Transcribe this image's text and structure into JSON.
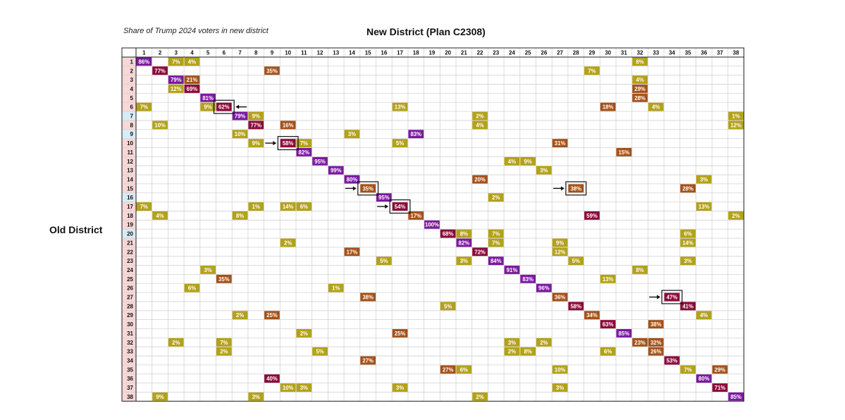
{
  "chart_data": {
    "type": "heatmap",
    "title": "New District (Plan C2308)",
    "subtitle": "Share of Trump 2024 voters in new district",
    "xlabel": "New District (Plan C2308)",
    "ylabel": "Old District",
    "columns": [
      "1",
      "2",
      "3",
      "4",
      "5",
      "6",
      "7",
      "8",
      "9",
      "10",
      "11",
      "12",
      "13",
      "14",
      "15",
      "16",
      "17",
      "18",
      "19",
      "20",
      "21",
      "22",
      "23",
      "24",
      "25",
      "26",
      "27",
      "28",
      "29",
      "30",
      "31",
      "32",
      "33",
      "34",
      "35",
      "36",
      "37",
      "38"
    ],
    "rows": [
      "1",
      "2",
      "3",
      "4",
      "5",
      "6",
      "7",
      "8",
      "9",
      "10",
      "11",
      "12",
      "13",
      "14",
      "15",
      "16",
      "17",
      "18",
      "19",
      "20",
      "21",
      "22",
      "23",
      "24",
      "25",
      "26",
      "27",
      "28",
      "29",
      "30",
      "31",
      "32",
      "33",
      "34",
      "35",
      "36",
      "37",
      "38"
    ],
    "row_header_colors": {
      "pink": "#f8d7d7",
      "blue": "#d6ecf8"
    },
    "blue_rows": [
      "7",
      "9",
      "16",
      "20"
    ],
    "color_scale": {
      "low": "#b3a218",
      "mid": "#a3521a",
      "high": "#8a0a3a",
      "top": "#7a1a9e"
    },
    "cells": [
      {
        "row": "1",
        "col": "1",
        "value": 86
      },
      {
        "row": "1",
        "col": "3",
        "value": 7
      },
      {
        "row": "1",
        "col": "4",
        "value": 4
      },
      {
        "row": "1",
        "col": "32",
        "value": 8
      },
      {
        "row": "2",
        "col": "2",
        "value": 77
      },
      {
        "row": "2",
        "col": "9",
        "value": 35
      },
      {
        "row": "2",
        "col": "29",
        "value": 7
      },
      {
        "row": "3",
        "col": "3",
        "value": 79
      },
      {
        "row": "3",
        "col": "4",
        "value": 21
      },
      {
        "row": "3",
        "col": "32",
        "value": 4
      },
      {
        "row": "4",
        "col": "3",
        "value": 12
      },
      {
        "row": "4",
        "col": "4",
        "value": 69
      },
      {
        "row": "4",
        "col": "32",
        "value": 29
      },
      {
        "row": "5",
        "col": "5",
        "value": 81
      },
      {
        "row": "5",
        "col": "32",
        "value": 28
      },
      {
        "row": "6",
        "col": "1",
        "value": 7
      },
      {
        "row": "6",
        "col": "5",
        "value": 9
      },
      {
        "row": "6",
        "col": "6",
        "value": 62
      },
      {
        "row": "6",
        "col": "17",
        "value": 13
      },
      {
        "row": "6",
        "col": "30",
        "value": 18
      },
      {
        "row": "6",
        "col": "33",
        "value": 4
      },
      {
        "row": "7",
        "col": "7",
        "value": 79
      },
      {
        "row": "7",
        "col": "8",
        "value": 9
      },
      {
        "row": "7",
        "col": "22",
        "value": 2
      },
      {
        "row": "7",
        "col": "38",
        "value": 1
      },
      {
        "row": "8",
        "col": "2",
        "value": 10
      },
      {
        "row": "8",
        "col": "8",
        "value": 77
      },
      {
        "row": "8",
        "col": "10",
        "value": 16
      },
      {
        "row": "8",
        "col": "22",
        "value": 4
      },
      {
        "row": "8",
        "col": "38",
        "value": 12
      },
      {
        "row": "9",
        "col": "7",
        "value": 10
      },
      {
        "row": "9",
        "col": "14",
        "value": 3
      },
      {
        "row": "9",
        "col": "18",
        "value": 83
      },
      {
        "row": "10",
        "col": "8",
        "value": 9
      },
      {
        "row": "10",
        "col": "10",
        "value": 58
      },
      {
        "row": "10",
        "col": "11",
        "value": 7
      },
      {
        "row": "10",
        "col": "17",
        "value": 5
      },
      {
        "row": "10",
        "col": "27",
        "value": 31
      },
      {
        "row": "11",
        "col": "11",
        "value": 82
      },
      {
        "row": "11",
        "col": "31",
        "value": 15
      },
      {
        "row": "12",
        "col": "12",
        "value": 95
      },
      {
        "row": "12",
        "col": "24",
        "value": 4
      },
      {
        "row": "12",
        "col": "25",
        "value": 9
      },
      {
        "row": "13",
        "col": "13",
        "value": 99
      },
      {
        "row": "13",
        "col": "26",
        "value": 3
      },
      {
        "row": "14",
        "col": "14",
        "value": 80
      },
      {
        "row": "14",
        "col": "22",
        "value": 20
      },
      {
        "row": "14",
        "col": "36",
        "value": 3
      },
      {
        "row": "15",
        "col": "15",
        "value": 35
      },
      {
        "row": "15",
        "col": "28",
        "value": 38
      },
      {
        "row": "15",
        "col": "35",
        "value": 28
      },
      {
        "row": "16",
        "col": "16",
        "value": 95
      },
      {
        "row": "16",
        "col": "23",
        "value": 2
      },
      {
        "row": "17",
        "col": "1",
        "value": 7
      },
      {
        "row": "17",
        "col": "8",
        "value": 1
      },
      {
        "row": "17",
        "col": "10",
        "value": 14
      },
      {
        "row": "17",
        "col": "11",
        "value": 6
      },
      {
        "row": "17",
        "col": "17",
        "value": 54
      },
      {
        "row": "17",
        "col": "36",
        "value": 13
      },
      {
        "row": "18",
        "col": "2",
        "value": 4
      },
      {
        "row": "18",
        "col": "7",
        "value": 8
      },
      {
        "row": "18",
        "col": "18",
        "value": 17
      },
      {
        "row": "18",
        "col": "29",
        "value": 59
      },
      {
        "row": "18",
        "col": "38",
        "value": 2
      },
      {
        "row": "19",
        "col": "19",
        "value": 100
      },
      {
        "row": "20",
        "col": "20",
        "value": 68
      },
      {
        "row": "20",
        "col": "21",
        "value": 8
      },
      {
        "row": "20",
        "col": "23",
        "value": 7
      },
      {
        "row": "20",
        "col": "35",
        "value": 6
      },
      {
        "row": "21",
        "col": "10",
        "value": 2
      },
      {
        "row": "21",
        "col": "21",
        "value": 82
      },
      {
        "row": "21",
        "col": "23",
        "value": 7
      },
      {
        "row": "21",
        "col": "27",
        "value": 9
      },
      {
        "row": "21",
        "col": "35",
        "value": 14
      },
      {
        "row": "22",
        "col": "14",
        "value": 17
      },
      {
        "row": "22",
        "col": "22",
        "value": 72
      },
      {
        "row": "22",
        "col": "27",
        "value": 12
      },
      {
        "row": "23",
        "col": "16",
        "value": 5
      },
      {
        "row": "23",
        "col": "21",
        "value": 3
      },
      {
        "row": "23",
        "col": "23",
        "value": 84
      },
      {
        "row": "23",
        "col": "28",
        "value": 5
      },
      {
        "row": "23",
        "col": "35",
        "value": 3
      },
      {
        "row": "24",
        "col": "5",
        "value": 3
      },
      {
        "row": "24",
        "col": "24",
        "value": 91
      },
      {
        "row": "24",
        "col": "32",
        "value": 8
      },
      {
        "row": "25",
        "col": "6",
        "value": 35
      },
      {
        "row": "25",
        "col": "25",
        "value": 83
      },
      {
        "row": "25",
        "col": "30",
        "value": 13
      },
      {
        "row": "26",
        "col": "4",
        "value": 6
      },
      {
        "row": "26",
        "col": "13",
        "value": 1
      },
      {
        "row": "26",
        "col": "26",
        "value": 96
      },
      {
        "row": "27",
        "col": "15",
        "value": 38
      },
      {
        "row": "27",
        "col": "27",
        "value": 36
      },
      {
        "row": "27",
        "col": "34",
        "value": 47
      },
      {
        "row": "28",
        "col": "20",
        "value": 5
      },
      {
        "row": "28",
        "col": "28",
        "value": 58
      },
      {
        "row": "28",
        "col": "35",
        "value": 41
      },
      {
        "row": "29",
        "col": "7",
        "value": 2
      },
      {
        "row": "29",
        "col": "9",
        "value": 25
      },
      {
        "row": "29",
        "col": "29",
        "value": 34
      },
      {
        "row": "29",
        "col": "36",
        "value": 4
      },
      {
        "row": "30",
        "col": "30",
        "value": 63
      },
      {
        "row": "30",
        "col": "33",
        "value": 38
      },
      {
        "row": "31",
        "col": "11",
        "value": 2
      },
      {
        "row": "31",
        "col": "17",
        "value": 25
      },
      {
        "row": "31",
        "col": "31",
        "value": 85
      },
      {
        "row": "32",
        "col": "3",
        "value": 2
      },
      {
        "row": "32",
        "col": "6",
        "value": 7
      },
      {
        "row": "32",
        "col": "24",
        "value": 3
      },
      {
        "row": "32",
        "col": "26",
        "value": 2
      },
      {
        "row": "32",
        "col": "32",
        "value": 23
      },
      {
        "row": "32",
        "col": "33",
        "value": 32
      },
      {
        "row": "33",
        "col": "6",
        "value": 2
      },
      {
        "row": "33",
        "col": "12",
        "value": 5
      },
      {
        "row": "33",
        "col": "24",
        "value": 2
      },
      {
        "row": "33",
        "col": "25",
        "value": 8
      },
      {
        "row": "33",
        "col": "30",
        "value": 6
      },
      {
        "row": "33",
        "col": "33",
        "value": 26
      },
      {
        "row": "34",
        "col": "15",
        "value": 27
      },
      {
        "row": "34",
        "col": "34",
        "value": 53
      },
      {
        "row": "35",
        "col": "20",
        "value": 27
      },
      {
        "row": "35",
        "col": "21",
        "value": 6
      },
      {
        "row": "35",
        "col": "27",
        "value": 10
      },
      {
        "row": "35",
        "col": "35",
        "value": 7
      },
      {
        "row": "35",
        "col": "37",
        "value": 29
      },
      {
        "row": "36",
        "col": "9",
        "value": 40
      },
      {
        "row": "36",
        "col": "36",
        "value": 80
      },
      {
        "row": "37",
        "col": "10",
        "value": 10
      },
      {
        "row": "37",
        "col": "11",
        "value": 3
      },
      {
        "row": "37",
        "col": "17",
        "value": 3
      },
      {
        "row": "37",
        "col": "27",
        "value": 3
      },
      {
        "row": "37",
        "col": "37",
        "value": 71
      },
      {
        "row": "38",
        "col": "2",
        "value": 9
      },
      {
        "row": "38",
        "col": "8",
        "value": 3
      },
      {
        "row": "38",
        "col": "22",
        "value": 2
      },
      {
        "row": "38",
        "col": "38",
        "value": 85
      }
    ],
    "highlighted": [
      {
        "row": "6",
        "col": "6",
        "arrow": "left"
      },
      {
        "row": "10",
        "col": "10",
        "arrow": "right"
      },
      {
        "row": "15",
        "col": "15",
        "arrow": "right"
      },
      {
        "row": "15",
        "col": "28",
        "arrow": "right"
      },
      {
        "row": "17",
        "col": "17",
        "arrow": "right"
      },
      {
        "row": "27",
        "col": "34",
        "arrow": "right"
      }
    ],
    "value_suffix": "%",
    "legend": "none",
    "grid": true
  }
}
